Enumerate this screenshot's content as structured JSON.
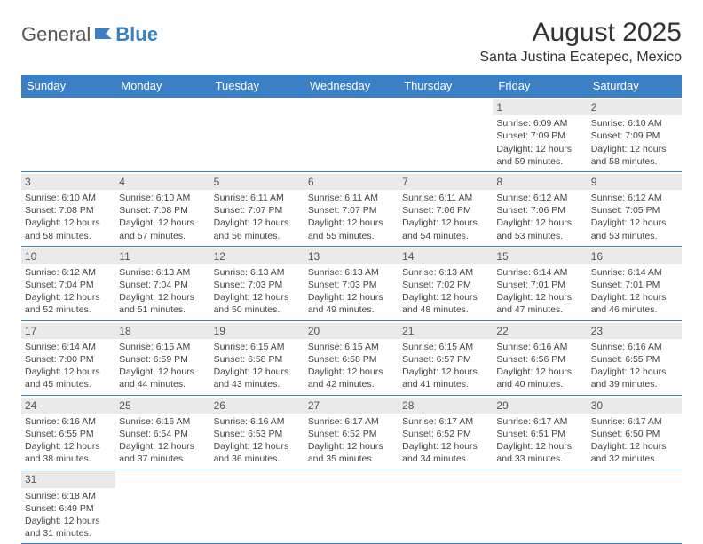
{
  "logo": {
    "part1": "General",
    "part2": "Blue"
  },
  "title": "August 2025",
  "location": "Santa Justina Ecatepec, Mexico",
  "colors": {
    "header_bg": "#3b7fc4",
    "header_text": "#ffffff",
    "daynum_bg": "#eaeaea",
    "border": "#3b7fc4",
    "text": "#444444",
    "background": "#ffffff"
  },
  "weekdays": [
    "Sunday",
    "Monday",
    "Tuesday",
    "Wednesday",
    "Thursday",
    "Friday",
    "Saturday"
  ],
  "weeks": [
    [
      null,
      null,
      null,
      null,
      null,
      {
        "n": "1",
        "sunrise": "Sunrise: 6:09 AM",
        "sunset": "Sunset: 7:09 PM",
        "day": "Daylight: 12 hours and 59 minutes."
      },
      {
        "n": "2",
        "sunrise": "Sunrise: 6:10 AM",
        "sunset": "Sunset: 7:09 PM",
        "day": "Daylight: 12 hours and 58 minutes."
      }
    ],
    [
      {
        "n": "3",
        "sunrise": "Sunrise: 6:10 AM",
        "sunset": "Sunset: 7:08 PM",
        "day": "Daylight: 12 hours and 58 minutes."
      },
      {
        "n": "4",
        "sunrise": "Sunrise: 6:10 AM",
        "sunset": "Sunset: 7:08 PM",
        "day": "Daylight: 12 hours and 57 minutes."
      },
      {
        "n": "5",
        "sunrise": "Sunrise: 6:11 AM",
        "sunset": "Sunset: 7:07 PM",
        "day": "Daylight: 12 hours and 56 minutes."
      },
      {
        "n": "6",
        "sunrise": "Sunrise: 6:11 AM",
        "sunset": "Sunset: 7:07 PM",
        "day": "Daylight: 12 hours and 55 minutes."
      },
      {
        "n": "7",
        "sunrise": "Sunrise: 6:11 AM",
        "sunset": "Sunset: 7:06 PM",
        "day": "Daylight: 12 hours and 54 minutes."
      },
      {
        "n": "8",
        "sunrise": "Sunrise: 6:12 AM",
        "sunset": "Sunset: 7:06 PM",
        "day": "Daylight: 12 hours and 53 minutes."
      },
      {
        "n": "9",
        "sunrise": "Sunrise: 6:12 AM",
        "sunset": "Sunset: 7:05 PM",
        "day": "Daylight: 12 hours and 53 minutes."
      }
    ],
    [
      {
        "n": "10",
        "sunrise": "Sunrise: 6:12 AM",
        "sunset": "Sunset: 7:04 PM",
        "day": "Daylight: 12 hours and 52 minutes."
      },
      {
        "n": "11",
        "sunrise": "Sunrise: 6:13 AM",
        "sunset": "Sunset: 7:04 PM",
        "day": "Daylight: 12 hours and 51 minutes."
      },
      {
        "n": "12",
        "sunrise": "Sunrise: 6:13 AM",
        "sunset": "Sunset: 7:03 PM",
        "day": "Daylight: 12 hours and 50 minutes."
      },
      {
        "n": "13",
        "sunrise": "Sunrise: 6:13 AM",
        "sunset": "Sunset: 7:03 PM",
        "day": "Daylight: 12 hours and 49 minutes."
      },
      {
        "n": "14",
        "sunrise": "Sunrise: 6:13 AM",
        "sunset": "Sunset: 7:02 PM",
        "day": "Daylight: 12 hours and 48 minutes."
      },
      {
        "n": "15",
        "sunrise": "Sunrise: 6:14 AM",
        "sunset": "Sunset: 7:01 PM",
        "day": "Daylight: 12 hours and 47 minutes."
      },
      {
        "n": "16",
        "sunrise": "Sunrise: 6:14 AM",
        "sunset": "Sunset: 7:01 PM",
        "day": "Daylight: 12 hours and 46 minutes."
      }
    ],
    [
      {
        "n": "17",
        "sunrise": "Sunrise: 6:14 AM",
        "sunset": "Sunset: 7:00 PM",
        "day": "Daylight: 12 hours and 45 minutes."
      },
      {
        "n": "18",
        "sunrise": "Sunrise: 6:15 AM",
        "sunset": "Sunset: 6:59 PM",
        "day": "Daylight: 12 hours and 44 minutes."
      },
      {
        "n": "19",
        "sunrise": "Sunrise: 6:15 AM",
        "sunset": "Sunset: 6:58 PM",
        "day": "Daylight: 12 hours and 43 minutes."
      },
      {
        "n": "20",
        "sunrise": "Sunrise: 6:15 AM",
        "sunset": "Sunset: 6:58 PM",
        "day": "Daylight: 12 hours and 42 minutes."
      },
      {
        "n": "21",
        "sunrise": "Sunrise: 6:15 AM",
        "sunset": "Sunset: 6:57 PM",
        "day": "Daylight: 12 hours and 41 minutes."
      },
      {
        "n": "22",
        "sunrise": "Sunrise: 6:16 AM",
        "sunset": "Sunset: 6:56 PM",
        "day": "Daylight: 12 hours and 40 minutes."
      },
      {
        "n": "23",
        "sunrise": "Sunrise: 6:16 AM",
        "sunset": "Sunset: 6:55 PM",
        "day": "Daylight: 12 hours and 39 minutes."
      }
    ],
    [
      {
        "n": "24",
        "sunrise": "Sunrise: 6:16 AM",
        "sunset": "Sunset: 6:55 PM",
        "day": "Daylight: 12 hours and 38 minutes."
      },
      {
        "n": "25",
        "sunrise": "Sunrise: 6:16 AM",
        "sunset": "Sunset: 6:54 PM",
        "day": "Daylight: 12 hours and 37 minutes."
      },
      {
        "n": "26",
        "sunrise": "Sunrise: 6:16 AM",
        "sunset": "Sunset: 6:53 PM",
        "day": "Daylight: 12 hours and 36 minutes."
      },
      {
        "n": "27",
        "sunrise": "Sunrise: 6:17 AM",
        "sunset": "Sunset: 6:52 PM",
        "day": "Daylight: 12 hours and 35 minutes."
      },
      {
        "n": "28",
        "sunrise": "Sunrise: 6:17 AM",
        "sunset": "Sunset: 6:52 PM",
        "day": "Daylight: 12 hours and 34 minutes."
      },
      {
        "n": "29",
        "sunrise": "Sunrise: 6:17 AM",
        "sunset": "Sunset: 6:51 PM",
        "day": "Daylight: 12 hours and 33 minutes."
      },
      {
        "n": "30",
        "sunrise": "Sunrise: 6:17 AM",
        "sunset": "Sunset: 6:50 PM",
        "day": "Daylight: 12 hours and 32 minutes."
      }
    ],
    [
      {
        "n": "31",
        "sunrise": "Sunrise: 6:18 AM",
        "sunset": "Sunset: 6:49 PM",
        "day": "Daylight: 12 hours and 31 minutes."
      },
      null,
      null,
      null,
      null,
      null,
      null
    ]
  ]
}
